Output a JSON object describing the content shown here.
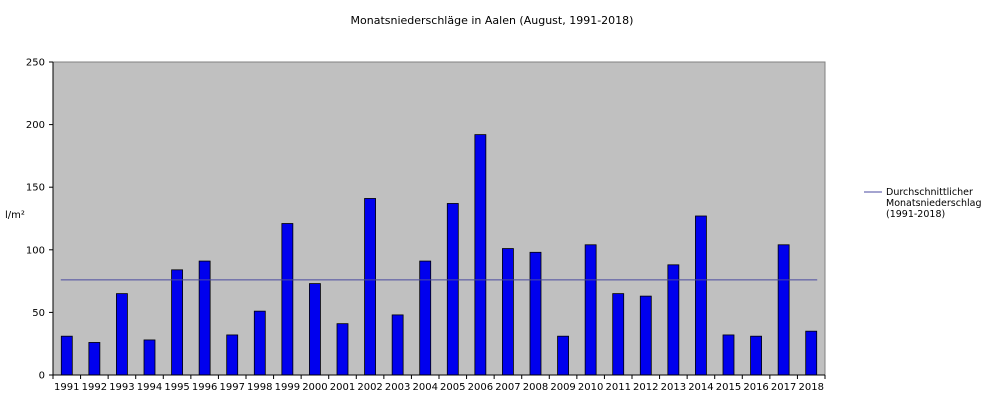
{
  "chart_data": {
    "type": "bar",
    "title": "Monatsniederschläge in Aalen (August, 1991-2018)",
    "ylabel": "l/m²",
    "xlabel": "",
    "ylim": [
      0,
      250
    ],
    "yticks": [
      "0",
      "50",
      "100",
      "150",
      "200",
      "250"
    ],
    "grid": false,
    "categories": [
      "1991",
      "1992",
      "1993",
      "1994",
      "1995",
      "1996",
      "1997",
      "1998",
      "1999",
      "2000",
      "2001",
      "2002",
      "2003",
      "2004",
      "2005",
      "2006",
      "2007",
      "2008",
      "2009",
      "2010",
      "2011",
      "2012",
      "2013",
      "2014",
      "2015",
      "2016",
      "2017",
      "2018"
    ],
    "values": [
      31,
      26,
      65,
      28,
      84,
      91,
      32,
      51,
      121,
      73,
      41,
      141,
      48,
      91,
      137,
      192,
      101,
      98,
      31,
      104,
      65,
      63,
      88,
      127,
      32,
      31,
      104,
      35
    ],
    "reference_line": {
      "value": 76,
      "label_lines": [
        "Durchschnittlicher",
        "Monatsniederschlag",
        "(1991-2018)"
      ]
    },
    "legend_position": "right",
    "colors": {
      "bar": "#0000ee",
      "plot_background": "#c0c0c0",
      "reference_line": "#4a4aa0"
    }
  }
}
